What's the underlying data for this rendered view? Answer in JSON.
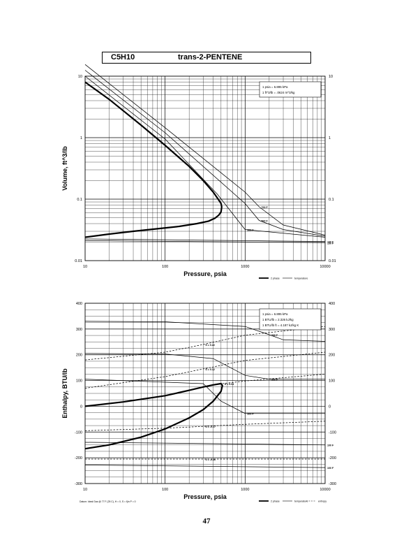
{
  "title": {
    "code": "C5H10",
    "name": "trans-2-PENTENE"
  },
  "page_number": "47",
  "chart_data": [
    {
      "type": "line",
      "xscale": "log",
      "yscale": "log",
      "xlim": [
        10,
        10000
      ],
      "ylim": [
        0.01,
        10
      ],
      "xlabel": "Pressure,  psia",
      "ylabel": "Volume, ft^3/lb",
      "xticks": [
        "10",
        "100",
        "1000",
        "10000"
      ],
      "yticks_left": [
        "0.01",
        "0.1",
        "1",
        "10"
      ],
      "yticks_right": [
        "0.01",
        "0.1",
        "1",
        "10"
      ],
      "grid": true,
      "legend_box": [
        "1 psia  =  6.895 kPa",
        "1 ft^3/lb  =  .0624 m^3/kg"
      ],
      "legend_bottom": [
        "2 phase",
        "temperature"
      ],
      "isotherm_labels": [
        "700 F",
        "500 F",
        "300 F",
        "100 F",
        "150 F"
      ],
      "series": [
        {
          "name": "2 phase",
          "x": [
            10,
            20,
            50,
            100,
            200,
            300,
            400,
            460,
            500,
            510,
            500,
            470,
            420,
            350,
            250,
            150,
            80,
            40,
            20,
            10
          ],
          "y": [
            8.0,
            4.2,
            1.6,
            0.75,
            0.34,
            0.2,
            0.13,
            0.1,
            0.085,
            0.075,
            0.062,
            0.055,
            0.049,
            0.044,
            0.04,
            0.036,
            0.033,
            0.03,
            0.027,
            0.024
          ]
        },
        {
          "name": "700 F",
          "x": [
            10,
            100,
            1000,
            1500,
            3000,
            10000
          ],
          "y": [
            15.5,
            1.45,
            0.13,
            0.075,
            0.038,
            0.026
          ]
        },
        {
          "name": "500 F",
          "x": [
            10,
            100,
            1000,
            1500,
            3000,
            10000
          ],
          "y": [
            12.5,
            1.2,
            0.085,
            0.045,
            0.032,
            0.025
          ]
        },
        {
          "name": "300 F",
          "x": [
            10,
            100,
            450,
            1000,
            10000
          ],
          "y": [
            10.0,
            0.95,
            0.12,
            0.032,
            0.024
          ]
        },
        {
          "name": "100 F",
          "x": [
            10,
            10000
          ],
          "y": [
            0.0225,
            0.0205
          ]
        },
        {
          "name": "150 F",
          "x": [
            10,
            10000
          ],
          "y": [
            0.0212,
            0.0196
          ]
        }
      ]
    },
    {
      "type": "line",
      "xscale": "log",
      "xlim": [
        10,
        10000
      ],
      "ylim": [
        -300,
        400
      ],
      "xlabel": "Pressure,  psia",
      "ylabel": "Enthalpy,  BTU/lb",
      "xticks": [
        "10",
        "100",
        "1000",
        "10000"
      ],
      "yticks_left": [
        "-300",
        "-200",
        "-100",
        "0",
        "100",
        "200",
        "300",
        "400"
      ],
      "yticks_right": [
        "-300",
        "-200",
        "-100",
        "0",
        "100",
        "200",
        "300",
        "400"
      ],
      "grid": true,
      "legend_box": [
        "1 psia  =  6.895 kPa",
        "1 BTU/lb  =  2.326 kJ/kg",
        "1 BTU/lb ft  =  4.187 kJ/kg K"
      ],
      "legend_bottom": [
        "2 phase",
        "temperature",
        "entropy"
      ],
      "footnote": "Datum: Ideal Gas @ 77 F (25 C),  H = 0,  S = f(in P = 0",
      "isotherm_labels": [
        "700 F",
        "500 F",
        "300 F",
        "100 F",
        "100 F"
      ],
      "entropy_labels": [
        "S = 0.22",
        "S = 0.12",
        "S = 0.04",
        "S = -0.17",
        "S = -0.36"
      ],
      "series": [
        {
          "name": "2 phase",
          "x": [
            10,
            30,
            100,
            200,
            300,
            400,
            500,
            520,
            500,
            400,
            300,
            200,
            100,
            50,
            20,
            10
          ],
          "y": [
            0,
            17,
            41,
            62,
            75,
            83,
            88,
            80,
            58,
            20,
            -13,
            -45,
            -88,
            -120,
            -150,
            -165
          ]
        },
        {
          "name": "700 F",
          "x": [
            10,
            100,
            1000,
            2000,
            3000,
            10000
          ],
          "y": [
            330,
            328,
            310,
            278,
            258,
            252
          ]
        },
        {
          "name": "500 F",
          "x": [
            10,
            100,
            400,
            1000,
            2000,
            10000
          ],
          "y": [
            205,
            203,
            185,
            120,
            105,
            105
          ]
        },
        {
          "name": "300 F",
          "x": [
            10,
            300,
            500,
            1000,
            10000
          ],
          "y": [
            105,
            88,
            20,
            -28,
            -28
          ]
        },
        {
          "name": "100 F",
          "x": [
            10,
            10000
          ],
          "y": [
            -140,
            -150
          ]
        },
        {
          "name": "100 F",
          "x": [
            10,
            10000
          ],
          "y": [
            -228,
            -238
          ]
        },
        {
          "name": "S = 0.22",
          "x": [
            10,
            100,
            300,
            1000,
            10000
          ],
          "y": [
            180,
            210,
            240,
            276,
            310
          ]
        },
        {
          "name": "S = 0.12",
          "x": [
            10,
            100,
            300,
            1000,
            10000
          ],
          "y": [
            70,
            115,
            145,
            178,
            210
          ]
        },
        {
          "name": "S = 0.04",
          "x": [
            520,
            1000,
            10000
          ],
          "y": [
            88,
            98,
            125
          ]
        },
        {
          "name": "S = -0.17",
          "x": [
            10,
            100,
            300,
            1000,
            10000
          ],
          "y": [
            -95,
            -85,
            -78,
            -70,
            -58
          ]
        },
        {
          "name": "S = -0.36",
          "x": [
            10,
            100,
            300,
            1000,
            10000
          ],
          "y": [
            -205,
            -205,
            -205,
            -205,
            -205
          ]
        }
      ]
    }
  ]
}
